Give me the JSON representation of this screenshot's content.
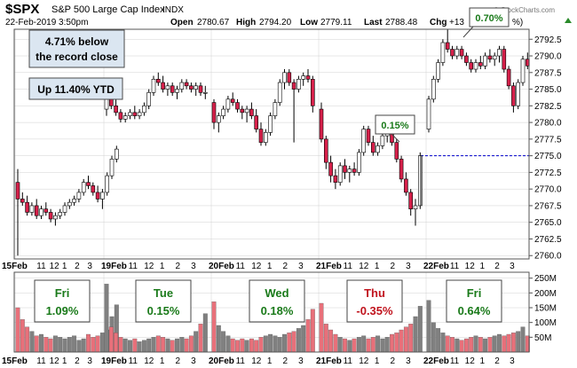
{
  "header": {
    "symbol": "$SPX",
    "name": "S&P 500 Large Cap Index",
    "exchange": "INDX",
    "datetime": "22-Feb-2019 3:50pm",
    "open_label": "Open",
    "open": "2780.67",
    "high_label": "High",
    "high": "2794.20",
    "low_label": "Low",
    "low": "2779.11",
    "last_label": "Last",
    "last": "2788.48",
    "chg_label": "Chg",
    "chg": "+13",
    "chg_pct_tail": "%)",
    "watermark": "© StockCharts.com"
  },
  "callouts": {
    "below_record_line1": "4.71% below",
    "below_record_line2": "the record close",
    "ytd": "Up 11.40% YTD",
    "pct_070": "0.70%",
    "pct_015": "0.15%"
  },
  "day_stats": [
    {
      "day": "Fri",
      "pct": "1.09%",
      "color": "#1a7a1a"
    },
    {
      "day": "Tue",
      "pct": "0.15%",
      "color": "#1a7a1a"
    },
    {
      "day": "Wed",
      "pct": "0.18%",
      "color": "#1a7a1a"
    },
    {
      "day": "Thu",
      "pct": "-0.35%",
      "color": "#c0141e"
    },
    {
      "day": "Fri",
      "pct": "0.64%",
      "color": "#1a7a1a"
    }
  ],
  "colors": {
    "up_candle": "#ffffff",
    "down_candle": "#d6204a",
    "outline": "#000000",
    "vol_up": "#808080",
    "vol_down": "#e8707a",
    "reference_line": "#0000cc",
    "callout_bg": "#dbe6f1",
    "grid": "#d0d0d0"
  },
  "chart_data": {
    "type": "candlestick",
    "price_axis": {
      "ylim": [
        2759.5,
        2794.0
      ],
      "ticks": [
        "2792.5",
        "2790.0",
        "2787.5",
        "2785.0",
        "2782.5",
        "2780.0",
        "2777.5",
        "2775.0",
        "2772.5",
        "2770.0",
        "2767.5",
        "2765.0",
        "2762.5",
        "2760.0"
      ],
      "tick_values": [
        2792.5,
        2790.0,
        2787.5,
        2785.0,
        2782.5,
        2780.0,
        2777.5,
        2775.0,
        2772.5,
        2770.0,
        2767.5,
        2765.0,
        2762.5,
        2760.0
      ]
    },
    "volume_axis": {
      "ylim": [
        0,
        270
      ],
      "ticks": [
        "250M",
        "200M",
        "150M",
        "100M",
        "50M"
      ],
      "tick_values": [
        250,
        200,
        150,
        100,
        50
      ]
    },
    "reference_line": {
      "value": 2775.0
    },
    "x_tick_labels": [
      "15Feb",
      "11",
      "12",
      "1",
      "2",
      "3",
      "19Feb",
      "11",
      "12",
      "1",
      "2",
      "3",
      "20Feb",
      "11",
      "12",
      "1",
      "2",
      "3",
      "21Feb",
      "11",
      "12",
      "1",
      "2",
      "3",
      "22Feb",
      "11",
      "12",
      "1",
      "2",
      "3"
    ],
    "days_sessions": 5,
    "candles": [
      [
        2771.0,
        2773.0,
        2760.0,
        2768.5
      ],
      [
        2768.5,
        2769.5,
        2767.5,
        2768.0
      ],
      [
        2768.0,
        2769.0,
        2766.0,
        2766.5
      ],
      [
        2766.5,
        2768.0,
        2766.0,
        2767.5
      ],
      [
        2767.5,
        2768.5,
        2765.5,
        2766.0
      ],
      [
        2766.0,
        2767.5,
        2765.5,
        2767.0
      ],
      [
        2767.0,
        2768.0,
        2766.0,
        2766.5
      ],
      [
        2766.5,
        2767.0,
        2765.0,
        2765.5
      ],
      [
        2765.5,
        2766.5,
        2764.5,
        2766.0
      ],
      [
        2766.0,
        2767.0,
        2765.5,
        2766.5
      ],
      [
        2766.5,
        2768.0,
        2766.0,
        2767.5
      ],
      [
        2767.5,
        2768.5,
        2767.0,
        2768.0
      ],
      [
        2768.0,
        2769.0,
        2767.5,
        2768.5
      ],
      [
        2768.5,
        2770.0,
        2768.0,
        2769.5
      ],
      [
        2769.5,
        2771.5,
        2769.0,
        2771.0
      ],
      [
        2771.0,
        2772.0,
        2770.0,
        2770.5
      ],
      [
        2770.5,
        2771.0,
        2769.0,
        2769.5
      ],
      [
        2769.5,
        2770.5,
        2768.0,
        2768.5
      ],
      [
        2768.5,
        2770.0,
        2767.0,
        2769.5
      ],
      [
        2769.5,
        2772.5,
        2769.0,
        2772.0
      ],
      [
        2772.0,
        2775.0,
        2771.5,
        2774.5
      ],
      [
        2774.5,
        2776.5,
        2774.0,
        2776.0
      ],
      [
        2782.0,
        2785.5,
        2781.0,
        2784.5
      ],
      [
        2784.5,
        2785.0,
        2782.0,
        2782.5
      ],
      [
        2782.5,
        2783.5,
        2781.0,
        2781.5
      ],
      [
        2781.5,
        2782.0,
        2780.0,
        2780.5
      ],
      [
        2780.5,
        2781.5,
        2780.0,
        2781.0
      ],
      [
        2781.0,
        2782.0,
        2780.5,
        2781.5
      ],
      [
        2781.5,
        2782.5,
        2780.5,
        2781.0
      ],
      [
        2781.0,
        2782.0,
        2780.5,
        2781.5
      ],
      [
        2781.5,
        2783.0,
        2781.0,
        2782.5
      ],
      [
        2782.5,
        2785.0,
        2782.0,
        2784.5
      ],
      [
        2784.5,
        2787.0,
        2784.0,
        2786.5
      ],
      [
        2786.5,
        2787.5,
        2785.5,
        2786.0
      ],
      [
        2786.0,
        2787.0,
        2784.5,
        2785.0
      ],
      [
        2785.0,
        2786.0,
        2784.0,
        2785.5
      ],
      [
        2785.5,
        2786.0,
        2784.0,
        2784.5
      ],
      [
        2784.5,
        2785.5,
        2783.5,
        2785.0
      ],
      [
        2785.0,
        2786.5,
        2784.5,
        2786.0
      ],
      [
        2786.0,
        2786.5,
        2785.0,
        2785.5
      ],
      [
        2785.5,
        2786.0,
        2784.5,
        2785.0
      ],
      [
        2785.0,
        2786.0,
        2784.0,
        2785.5
      ],
      [
        2785.5,
        2786.0,
        2784.0,
        2784.5
      ],
      [
        2784.5,
        2785.5,
        2783.5,
        2784.5
      ],
      [
        2783.0,
        2783.5,
        2779.0,
        2780.0
      ],
      [
        2780.0,
        2781.5,
        2778.5,
        2781.0
      ],
      [
        2781.0,
        2782.5,
        2780.5,
        2782.0
      ],
      [
        2782.0,
        2784.0,
        2781.5,
        2783.5
      ],
      [
        2783.5,
        2784.5,
        2782.5,
        2783.0
      ],
      [
        2783.0,
        2783.5,
        2781.5,
        2782.0
      ],
      [
        2782.0,
        2782.5,
        2780.5,
        2781.5
      ],
      [
        2781.5,
        2782.5,
        2780.0,
        2782.0
      ],
      [
        2782.0,
        2783.0,
        2780.5,
        2781.0
      ],
      [
        2781.0,
        2782.0,
        2778.5,
        2779.0
      ],
      [
        2779.0,
        2780.0,
        2776.5,
        2777.0
      ],
      [
        2777.0,
        2779.0,
        2776.5,
        2778.5
      ],
      [
        2778.5,
        2781.5,
        2778.0,
        2781.0
      ],
      [
        2781.0,
        2783.5,
        2780.5,
        2783.0
      ],
      [
        2783.0,
        2786.5,
        2782.5,
        2786.0
      ],
      [
        2786.0,
        2788.0,
        2785.0,
        2787.5
      ],
      [
        2787.5,
        2788.0,
        2785.5,
        2786.0
      ],
      [
        2786.0,
        2786.5,
        2777.0,
        2785.0
      ],
      [
        2785.0,
        2787.0,
        2784.5,
        2786.5
      ],
      [
        2786.5,
        2787.5,
        2785.5,
        2787.0
      ],
      [
        2787.0,
        2788.0,
        2786.0,
        2786.5
      ],
      [
        2786.5,
        2787.0,
        2781.5,
        2782.5
      ],
      [
        2782.0,
        2783.0,
        2777.0,
        2777.5
      ],
      [
        2777.5,
        2778.0,
        2773.0,
        2774.0
      ],
      [
        2774.0,
        2775.0,
        2771.0,
        2772.0
      ],
      [
        2772.0,
        2773.0,
        2770.0,
        2771.0
      ],
      [
        2771.0,
        2774.0,
        2770.5,
        2773.5
      ],
      [
        2773.5,
        2774.5,
        2771.5,
        2772.5
      ],
      [
        2772.5,
        2773.5,
        2771.0,
        2773.0
      ],
      [
        2773.0,
        2774.0,
        2772.0,
        2772.5
      ],
      [
        2772.5,
        2776.0,
        2772.0,
        2775.5
      ],
      [
        2775.5,
        2779.5,
        2775.0,
        2779.0
      ],
      [
        2779.0,
        2779.5,
        2776.5,
        2777.0
      ],
      [
        2777.0,
        2778.0,
        2775.0,
        2775.5
      ],
      [
        2775.5,
        2777.0,
        2775.0,
        2776.5
      ],
      [
        2776.5,
        2778.5,
        2776.0,
        2778.0
      ],
      [
        2778.0,
        2779.0,
        2777.0,
        2778.5
      ],
      [
        2778.5,
        2779.0,
        2776.5,
        2777.0
      ],
      [
        2777.0,
        2777.5,
        2774.0,
        2774.5
      ],
      [
        2774.5,
        2775.0,
        2771.0,
        2771.5
      ],
      [
        2771.5,
        2772.5,
        2769.0,
        2769.5
      ],
      [
        2769.5,
        2770.0,
        2766.0,
        2767.0
      ],
      [
        2767.0,
        2768.5,
        2764.5,
        2767.5
      ],
      [
        2767.5,
        2775.5,
        2767.0,
        2775.0
      ],
      [
        2779.0,
        2784.0,
        2778.5,
        2783.5
      ],
      [
        2783.5,
        2787.0,
        2783.0,
        2786.5
      ],
      [
        2786.5,
        2789.5,
        2786.0,
        2789.0
      ],
      [
        2789.0,
        2792.5,
        2788.5,
        2792.0
      ],
      [
        2792.0,
        2794.0,
        2790.5,
        2791.0
      ],
      [
        2791.0,
        2791.5,
        2789.5,
        2790.0
      ],
      [
        2790.0,
        2791.5,
        2789.5,
        2791.0
      ],
      [
        2791.0,
        2791.5,
        2789.5,
        2790.0
      ],
      [
        2790.0,
        2790.5,
        2788.5,
        2789.0
      ],
      [
        2789.0,
        2789.5,
        2787.5,
        2788.0
      ],
      [
        2788.0,
        2789.5,
        2787.5,
        2789.0
      ],
      [
        2789.0,
        2790.0,
        2788.0,
        2788.5
      ],
      [
        2788.5,
        2790.5,
        2788.0,
        2790.0
      ],
      [
        2790.0,
        2791.0,
        2789.0,
        2789.5
      ],
      [
        2789.5,
        2790.5,
        2788.5,
        2790.0
      ],
      [
        2790.0,
        2791.5,
        2789.0,
        2791.0
      ],
      [
        2791.0,
        2791.5,
        2787.5,
        2788.0
      ],
      [
        2788.0,
        2788.5,
        2785.0,
        2785.5
      ],
      [
        2785.5,
        2786.0,
        2781.5,
        2782.5
      ],
      [
        2782.5,
        2786.5,
        2782.0,
        2786.0
      ],
      [
        2786.0,
        2790.0,
        2785.5,
        2789.5
      ],
      [
        2789.5,
        2790.5,
        2788.0,
        2788.5
      ]
    ],
    "volumes": [
      [
        150,
        110,
        85,
        70,
        55,
        60,
        50,
        45,
        55,
        50,
        45,
        50,
        55,
        40,
        45,
        60,
        50,
        55,
        65,
        75,
        120,
        160
      ],
      [
        230,
        85,
        65,
        50,
        45,
        40,
        45,
        35,
        40,
        45,
        50,
        55,
        50,
        45,
        40,
        45,
        50,
        45,
        55,
        70,
        95,
        130
      ],
      [
        170,
        90,
        70,
        55,
        45,
        40,
        45,
        40,
        45,
        40,
        50,
        55,
        60,
        55,
        50,
        60,
        65,
        70,
        80,
        90,
        110,
        145
      ],
      [
        165,
        95,
        75,
        60,
        50,
        45,
        40,
        45,
        50,
        55,
        45,
        50,
        55,
        45,
        50,
        60,
        65,
        75,
        85,
        95,
        120,
        155
      ],
      [
        175,
        100,
        80,
        65,
        55,
        50,
        45,
        40,
        45,
        50,
        55,
        50,
        45,
        50,
        55,
        60,
        55,
        60,
        65,
        70,
        85,
        55
      ]
    ]
  }
}
